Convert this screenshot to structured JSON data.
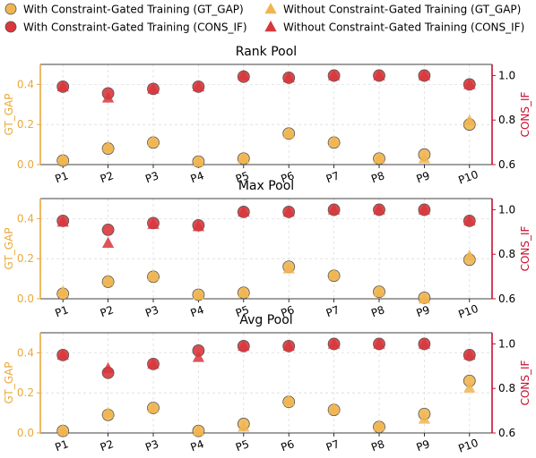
{
  "colors": {
    "gt": "#f0b551",
    "gt_axis": "#e9a93a",
    "cons": "#d8373c",
    "cons_axis": "#c8102e",
    "marker_edge": "#555555"
  },
  "legend": {
    "items": [
      {
        "label": "With Constraint-Gated Training (GT_GAP)",
        "marker": "circle",
        "color": "gt"
      },
      {
        "label": "With Constraint-Gated Training (CONS_IF)",
        "marker": "circle",
        "color": "cons"
      },
      {
        "label": "Without Constraint-Gated Training (GT_GAP)",
        "marker": "triangle",
        "color": "gt"
      },
      {
        "label": "Without Constraint-Gated Training (CONS_IF)",
        "marker": "triangle",
        "color": "cons"
      }
    ]
  },
  "chart_data": [
    {
      "type": "scatter",
      "title": "Rank Pool",
      "categories": [
        "P1",
        "P2",
        "P3",
        "P4",
        "P5",
        "P6",
        "P7",
        "P8",
        "P9",
        "P10"
      ],
      "ylabel_left": "GT_GAP",
      "ylabel_right": "CONS_IF",
      "ylim_left": [
        0,
        0.5
      ],
      "ylim_right": [
        0.6,
        1.05
      ],
      "yticks_left": [
        "0.0",
        "0.2",
        "0.4"
      ],
      "yticks_right": [
        "0.6",
        "0.8",
        "1.0"
      ],
      "grid": true,
      "series": [
        {
          "name": "With Constraint-Gated Training (GT_GAP)",
          "marker": "circle",
          "color": "gt",
          "axis": "left",
          "values": [
            0.02,
            0.08,
            0.11,
            0.015,
            0.03,
            0.155,
            0.11,
            0.03,
            0.05,
            0.2
          ]
        },
        {
          "name": "Without Constraint-Gated Training (GT_GAP)",
          "marker": "triangle",
          "color": "gt",
          "axis": "left",
          "values": [
            0.025,
            0.09,
            0.115,
            0.015,
            0.03,
            0.155,
            0.115,
            0.03,
            0.03,
            0.22
          ]
        },
        {
          "name": "With Constraint-Gated Training (CONS_IF)",
          "marker": "circle",
          "color": "cons",
          "axis": "right",
          "values": [
            0.95,
            0.92,
            0.94,
            0.95,
            0.995,
            0.99,
            1.0,
            1.0,
            1.0,
            0.96
          ]
        },
        {
          "name": "Without Constraint-Gated Training (CONS_IF)",
          "marker": "triangle",
          "color": "cons",
          "axis": "right",
          "values": [
            0.95,
            0.9,
            0.94,
            0.95,
            1.0,
            0.99,
            1.0,
            1.0,
            1.0,
            0.96
          ]
        }
      ]
    },
    {
      "type": "scatter",
      "title": "Max Pool",
      "categories": [
        "P1",
        "P2",
        "P3",
        "P4",
        "P5",
        "P6",
        "P7",
        "P8",
        "P9",
        "P10"
      ],
      "ylabel_left": "GT_GAP",
      "ylabel_right": "CONS_IF",
      "ylim_left": [
        0,
        0.5
      ],
      "ylim_right": [
        0.6,
        1.05
      ],
      "yticks_left": [
        "0.0",
        "0.2",
        "0.4"
      ],
      "yticks_right": [
        "0.6",
        "0.8",
        "1.0"
      ],
      "grid": true,
      "series": [
        {
          "name": "With Constraint-Gated Training (GT_GAP)",
          "marker": "circle",
          "color": "gt",
          "axis": "left",
          "values": [
            0.025,
            0.085,
            0.11,
            0.02,
            0.03,
            0.16,
            0.115,
            0.035,
            0.005,
            0.195
          ]
        },
        {
          "name": "Without Constraint-Gated Training (GT_GAP)",
          "marker": "triangle",
          "color": "gt",
          "axis": "left",
          "values": [
            0.035,
            0.09,
            0.115,
            0.02,
            0.03,
            0.15,
            0.12,
            0.035,
            0.0,
            0.215
          ]
        },
        {
          "name": "With Constraint-Gated Training (CONS_IF)",
          "marker": "circle",
          "color": "cons",
          "axis": "right",
          "values": [
            0.95,
            0.91,
            0.94,
            0.93,
            0.99,
            0.99,
            1.0,
            1.0,
            1.0,
            0.95
          ]
        },
        {
          "name": "Without Constraint-Gated Training (CONS_IF)",
          "marker": "triangle",
          "color": "cons",
          "axis": "right",
          "values": [
            0.945,
            0.85,
            0.935,
            0.925,
            0.99,
            0.99,
            1.0,
            1.0,
            1.0,
            0.95
          ]
        }
      ]
    },
    {
      "type": "scatter",
      "title": "Avg Pool",
      "categories": [
        "P1",
        "P2",
        "P3",
        "P4",
        "P5",
        "P6",
        "P7",
        "P8",
        "P9",
        "P10"
      ],
      "ylabel_left": "GT_GAP",
      "ylabel_right": "CONS_IF",
      "ylim_left": [
        0,
        0.5
      ],
      "ylim_right": [
        0.6,
        1.05
      ],
      "yticks_left": [
        "0.0",
        "0.2",
        "0.4"
      ],
      "yticks_right": [
        "0.6",
        "0.8",
        "1.0"
      ],
      "grid": true,
      "series": [
        {
          "name": "With Constraint-Gated Training (GT_GAP)",
          "marker": "circle",
          "color": "gt",
          "axis": "left",
          "values": [
            0.01,
            0.09,
            0.125,
            0.01,
            0.045,
            0.155,
            0.115,
            0.03,
            0.095,
            0.26
          ]
        },
        {
          "name": "Without Constraint-Gated Training (GT_GAP)",
          "marker": "triangle",
          "color": "gt",
          "axis": "left",
          "values": [
            0.015,
            0.1,
            0.125,
            0.01,
            0.03,
            0.16,
            0.12,
            0.035,
            0.07,
            0.225
          ]
        },
        {
          "name": "With Constraint-Gated Training (CONS_IF)",
          "marker": "circle",
          "color": "cons",
          "axis": "right",
          "values": [
            0.95,
            0.87,
            0.91,
            0.97,
            0.99,
            0.99,
            1.0,
            1.0,
            1.0,
            0.95
          ]
        },
        {
          "name": "Without Constraint-Gated Training (CONS_IF)",
          "marker": "triangle",
          "color": "cons",
          "axis": "right",
          "values": [
            0.95,
            0.89,
            0.91,
            0.94,
            0.99,
            0.99,
            1.0,
            1.0,
            1.0,
            0.95
          ]
        }
      ]
    }
  ]
}
